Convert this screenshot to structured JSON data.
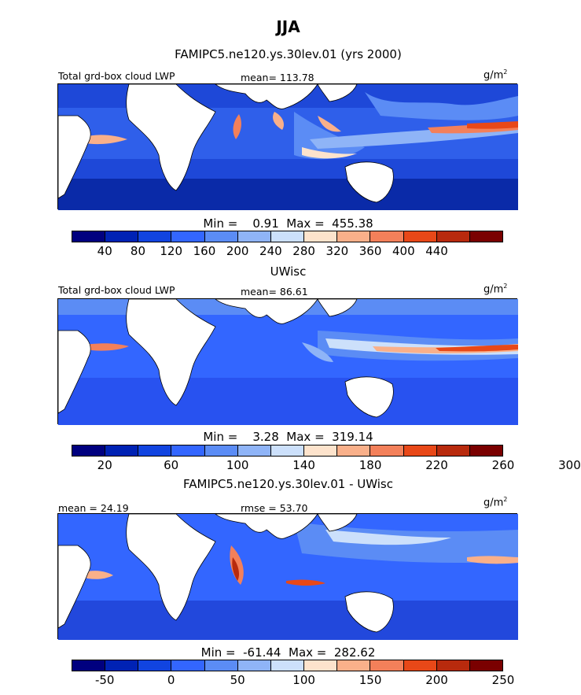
{
  "header": {
    "season": "JJA",
    "panel1_title": "FAMIPC5.ne120.ys.30lev.01 (yrs 2000)",
    "panel2_title": "UWisc",
    "panel3_title": "FAMIPC5.ne120.ys.30lev.01 - UWisc"
  },
  "panels": [
    {
      "left_label": "Total grd-box cloud LWP",
      "stat_label": "mean=  113.78",
      "units": "g/m",
      "units_exp": "2",
      "minmax": "Min =    0.91  Max =  455.38",
      "colorbar": [
        "#00007f",
        "#0022b4",
        "#1144e0",
        "#3366ff",
        "#5b8cf5",
        "#8fb4f7",
        "#cce0fb",
        "#fde3cc",
        "#f9b08a",
        "#f3805a",
        "#e84818",
        "#b82a0d",
        "#7a0000"
      ],
      "ticks": [
        "40",
        "80",
        "120",
        "160",
        "200",
        "240",
        "280",
        "320",
        "360",
        "400",
        "440"
      ]
    },
    {
      "left_label": "Total grd-box cloud LWP",
      "stat_label": "mean=   86.61",
      "units": "g/m",
      "units_exp": "2",
      "minmax": "Min =    3.28  Max =  319.14",
      "colorbar": [
        "#00007f",
        "#0022b4",
        "#1144e0",
        "#3366ff",
        "#5b8cf5",
        "#8fb4f7",
        "#cce0fb",
        "#fde3cc",
        "#f9b08a",
        "#f3805a",
        "#e84818",
        "#b82a0d",
        "#7a0000"
      ],
      "ticks": [
        "20",
        "60",
        "100",
        "140",
        "180",
        "220",
        "260",
        "300"
      ]
    },
    {
      "left_label": "mean =   24.19",
      "stat_label": "rmse =   53.70",
      "units": "g/m",
      "units_exp": "2",
      "minmax": "Min =  -61.44  Max =  282.62",
      "colorbar": [
        "#00007f",
        "#0022b4",
        "#1144e0",
        "#3366ff",
        "#5b8cf5",
        "#8fb4f7",
        "#cce0fb",
        "#fde3cc",
        "#f9b08a",
        "#f3805a",
        "#e84818",
        "#b82a0d",
        "#7a0000"
      ],
      "ticks": [
        "-50",
        "0",
        "50",
        "100",
        "150",
        "200",
        "250"
      ]
    }
  ]
}
